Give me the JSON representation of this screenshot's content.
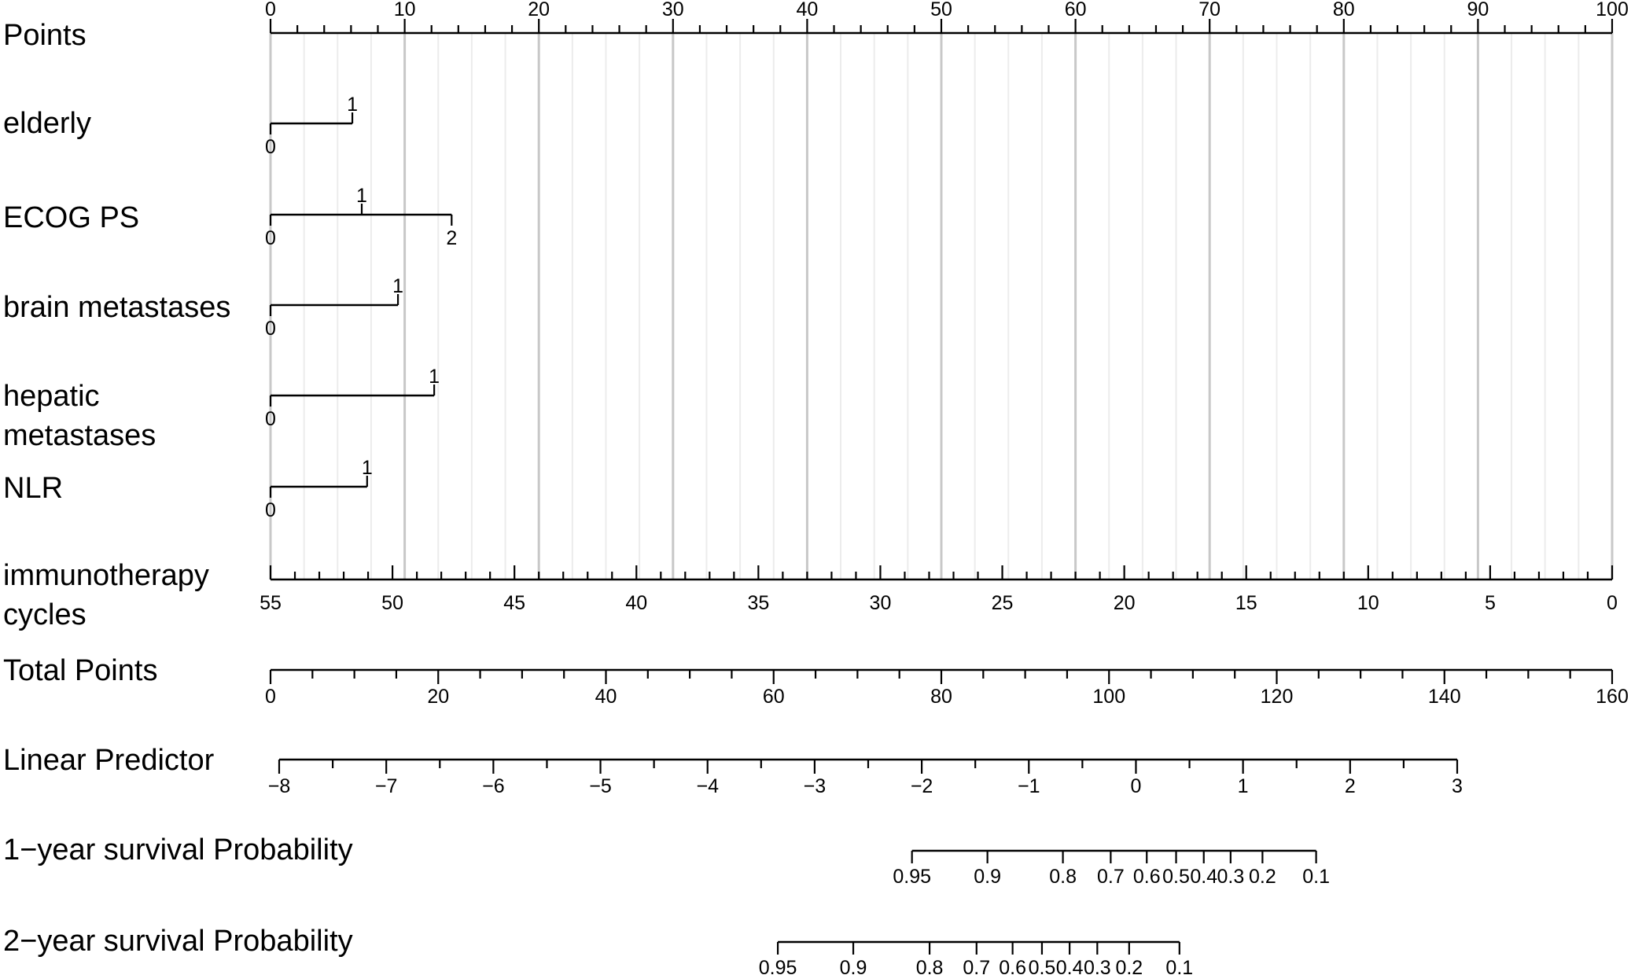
{
  "chart_data": {
    "type": "nomogram",
    "rows": [
      {
        "id": "points",
        "label": [
          "Points"
        ],
        "kind": "scale",
        "ticks": [
          0,
          10,
          20,
          30,
          40,
          50,
          60,
          70,
          80,
          90,
          100
        ]
      },
      {
        "id": "elderly",
        "label": [
          "elderly"
        ],
        "kind": "factor",
        "levels": [
          {
            "label": "0",
            "points": 0
          },
          {
            "label": "1",
            "points": 6.1
          }
        ]
      },
      {
        "id": "ecog",
        "label": [
          "ECOG PS"
        ],
        "kind": "factor",
        "levels": [
          {
            "label": "0",
            "points": 0
          },
          {
            "label": "1",
            "points": 6.8
          },
          {
            "label": "2",
            "points": 13.5
          }
        ]
      },
      {
        "id": "brain",
        "label": [
          "brain metastases"
        ],
        "kind": "factor",
        "levels": [
          {
            "label": "0",
            "points": 0
          },
          {
            "label": "1",
            "points": 9.5
          }
        ]
      },
      {
        "id": "hepatic",
        "label": [
          "hepatic",
          "metastases"
        ],
        "kind": "factor",
        "levels": [
          {
            "label": "0",
            "points": 0
          },
          {
            "label": "1",
            "points": 12.2
          }
        ]
      },
      {
        "id": "nlr",
        "label": [
          "NLR"
        ],
        "kind": "factor",
        "levels": [
          {
            "label": "0",
            "points": 0
          },
          {
            "label": "1",
            "points": 7.2
          }
        ]
      },
      {
        "id": "cycles",
        "label": [
          "immunotherapy",
          "cycles"
        ],
        "kind": "reverse-scale",
        "ticks": [
          55,
          50,
          45,
          40,
          35,
          30,
          25,
          20,
          15,
          10,
          5,
          0
        ]
      },
      {
        "id": "total",
        "label": [
          "Total Points"
        ],
        "kind": "scale",
        "ticks": [
          0,
          20,
          40,
          60,
          80,
          100,
          120,
          140,
          160
        ]
      },
      {
        "id": "lp",
        "label": [
          "Linear Predictor"
        ],
        "kind": "scale",
        "ticks": [
          "−8",
          "−7",
          "−6",
          "−5",
          "−4",
          "−3",
          "−2",
          "−1",
          "0",
          "1",
          "2",
          "3"
        ]
      },
      {
        "id": "surv1",
        "label": [
          "1−year survival Probability"
        ],
        "kind": "prob",
        "ticks": [
          {
            "label": "0.95",
            "total": 76.5
          },
          {
            "label": "0.9",
            "total": 85.5
          },
          {
            "label": "0.8",
            "total": 94.5
          },
          {
            "label": "0.7",
            "total": 100.2
          },
          {
            "label": "0.6",
            "total": 104.5
          },
          {
            "label": "0.5",
            "total": 108.0
          },
          {
            "label": "0.4",
            "total": 111.3
          },
          {
            "label": "0.3",
            "total": 114.5
          },
          {
            "label": "0.2",
            "total": 118.3
          },
          {
            "label": "0.1",
            "total": 124.7
          }
        ]
      },
      {
        "id": "surv2",
        "label": [
          "2−year survival Probability"
        ],
        "kind": "prob",
        "ticks": [
          {
            "label": "0.95",
            "total": 60.5
          },
          {
            "label": "0.9",
            "total": 69.5
          },
          {
            "label": "0.8",
            "total": 78.6
          },
          {
            "label": "0.7",
            "total": 84.2
          },
          {
            "label": "0.6",
            "total": 88.5
          },
          {
            "label": "0.5",
            "total": 92.0
          },
          {
            "label": "0.4",
            "total": 95.3
          },
          {
            "label": "0.3",
            "total": 98.6
          },
          {
            "label": "0.2",
            "total": 102.4
          },
          {
            "label": "0.1",
            "total": 108.4
          }
        ]
      }
    ],
    "points_range": [
      0,
      100
    ],
    "total_points_range": [
      0,
      160
    ],
    "linear_predictor_range": [
      -8,
      3
    ],
    "grid": true
  }
}
